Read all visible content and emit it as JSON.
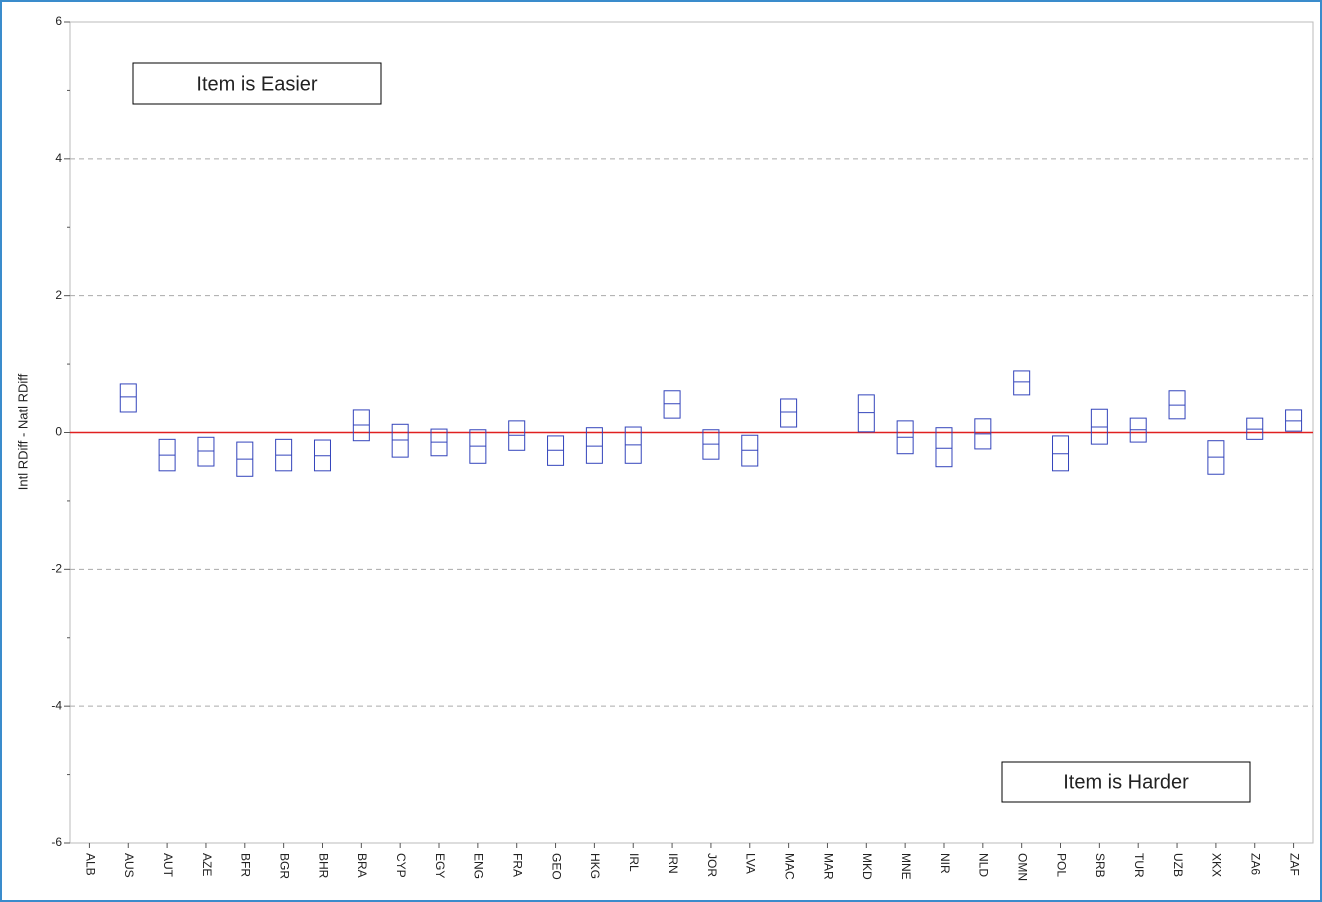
{
  "chart_data": {
    "type": "range",
    "ylabel": "Intl RDiff - Natl RDiff",
    "annotations": [
      "Item is Easier",
      "Item is Harder"
    ],
    "categories": [
      "ALB",
      "AUS",
      "AUT",
      "AZE",
      "BFR",
      "BGR",
      "BHR",
      "BRA",
      "CYP",
      "EGY",
      "ENG",
      "FRA",
      "GEO",
      "HKG",
      "IRL",
      "IRN",
      "JOR",
      "LVA",
      "MAC",
      "MAR",
      "MKD",
      "MNE",
      "NIR",
      "NLD",
      "OMN",
      "POL",
      "SRB",
      "TUR",
      "UZB",
      "XKX",
      "ZA6",
      "ZAF"
    ],
    "high": [
      null,
      0.71,
      -0.1,
      -0.07,
      -0.14,
      -0.1,
      -0.11,
      0.33,
      0.12,
      0.05,
      0.04,
      0.17,
      -0.05,
      0.07,
      0.08,
      0.61,
      0.04,
      -0.04,
      0.49,
      null,
      0.55,
      0.17,
      0.07,
      0.2,
      0.9,
      -0.05,
      0.34,
      0.21,
      0.61,
      -0.12,
      0.21,
      0.33
    ],
    "mid": [
      null,
      0.52,
      -0.33,
      -0.27,
      -0.39,
      -0.33,
      -0.34,
      0.11,
      -0.11,
      -0.14,
      -0.2,
      -0.04,
      -0.26,
      -0.2,
      -0.18,
      0.42,
      -0.17,
      -0.26,
      0.3,
      null,
      0.29,
      -0.07,
      -0.23,
      -0.02,
      0.74,
      -0.31,
      0.08,
      0.04,
      0.4,
      -0.36,
      0.05,
      0.17
    ],
    "low": [
      null,
      0.3,
      -0.56,
      -0.49,
      -0.64,
      -0.56,
      -0.56,
      -0.12,
      -0.36,
      -0.34,
      -0.45,
      -0.26,
      -0.48,
      -0.45,
      -0.45,
      0.21,
      -0.39,
      -0.49,
      0.08,
      null,
      0.01,
      -0.31,
      -0.5,
      -0.24,
      0.55,
      -0.56,
      -0.17,
      -0.14,
      0.2,
      -0.61,
      -0.1,
      0.02
    ],
    "color": "#3344bb",
    "ylim": [
      -6,
      6
    ],
    "yticks": [
      -6,
      -4,
      -2,
      0,
      2,
      4,
      6
    ],
    "yminorticks": [
      -5,
      -3,
      -1,
      1,
      3,
      5
    ],
    "grid": true,
    "reference_line": 0,
    "reference_color": "#e02020"
  }
}
